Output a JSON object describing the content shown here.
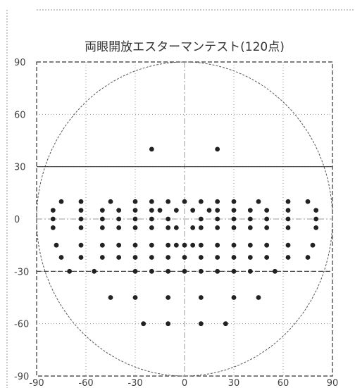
{
  "chart_data": {
    "type": "scatter",
    "title": "両眼開放エスターマンテスト(120点)",
    "xlabel": "",
    "ylabel": "",
    "xlim": [
      -90,
      90
    ],
    "ylim": [
      -90,
      90
    ],
    "xticks": [
      -90,
      -60,
      -30,
      0,
      30,
      60,
      90
    ],
    "yticks": [
      90,
      60,
      30,
      0,
      -30,
      -60,
      -90
    ],
    "grid": true,
    "xtick_labels": [
      "-90",
      "-60",
      "-30",
      "0",
      "30",
      "60",
      "90"
    ],
    "ytick_labels": [
      "90",
      "60",
      "30",
      "0",
      "-30",
      "-60",
      "-90"
    ],
    "reference_circle_radius": 90,
    "reference_lines_y": [
      30,
      -30
    ],
    "marker_color": "#222222",
    "points": [
      [
        -20,
        40
      ],
      [
        20,
        40
      ],
      [
        -75,
        10
      ],
      [
        -63,
        10
      ],
      [
        -45,
        10
      ],
      [
        -30,
        10
      ],
      [
        -20,
        10
      ],
      [
        -10,
        10
      ],
      [
        0,
        10
      ],
      [
        10,
        10
      ],
      [
        20,
        10
      ],
      [
        30,
        10
      ],
      [
        45,
        10
      ],
      [
        63,
        10
      ],
      [
        75,
        10
      ],
      [
        -80,
        5
      ],
      [
        -63,
        5
      ],
      [
        -50,
        5
      ],
      [
        -40,
        5
      ],
      [
        -30,
        5
      ],
      [
        -20,
        5
      ],
      [
        -15,
        5
      ],
      [
        -5,
        5
      ],
      [
        5,
        5
      ],
      [
        15,
        5
      ],
      [
        20,
        5
      ],
      [
        30,
        5
      ],
      [
        40,
        5
      ],
      [
        50,
        5
      ],
      [
        63,
        5
      ],
      [
        80,
        5
      ],
      [
        -80,
        0
      ],
      [
        -63,
        0
      ],
      [
        -50,
        0
      ],
      [
        -40,
        0
      ],
      [
        -30,
        0
      ],
      [
        -20,
        0
      ],
      [
        -10,
        0
      ],
      [
        10,
        0
      ],
      [
        20,
        0
      ],
      [
        30,
        0
      ],
      [
        40,
        0
      ],
      [
        50,
        0
      ],
      [
        63,
        0
      ],
      [
        80,
        0
      ],
      [
        -80,
        -5
      ],
      [
        -63,
        -5
      ],
      [
        -50,
        -5
      ],
      [
        -40,
        -5
      ],
      [
        -30,
        -5
      ],
      [
        -20,
        -5
      ],
      [
        -10,
        -5
      ],
      [
        -5,
        -5
      ],
      [
        5,
        -5
      ],
      [
        10,
        -5
      ],
      [
        20,
        -5
      ],
      [
        30,
        -5
      ],
      [
        40,
        -5
      ],
      [
        50,
        -5
      ],
      [
        63,
        -5
      ],
      [
        80,
        -5
      ],
      [
        -78,
        -15
      ],
      [
        -63,
        -15
      ],
      [
        -50,
        -15
      ],
      [
        -40,
        -15
      ],
      [
        -30,
        -15
      ],
      [
        -20,
        -15
      ],
      [
        -10,
        -15
      ],
      [
        -5,
        -15
      ],
      [
        0,
        -15
      ],
      [
        5,
        -15
      ],
      [
        10,
        -15
      ],
      [
        20,
        -15
      ],
      [
        30,
        -15
      ],
      [
        40,
        -15
      ],
      [
        50,
        -15
      ],
      [
        63,
        -15
      ],
      [
        78,
        -15
      ],
      [
        -75,
        -22
      ],
      [
        -63,
        -22
      ],
      [
        -50,
        -22
      ],
      [
        -40,
        -22
      ],
      [
        -30,
        -22
      ],
      [
        -20,
        -22
      ],
      [
        -10,
        -22
      ],
      [
        0,
        -22
      ],
      [
        10,
        -22
      ],
      [
        20,
        -22
      ],
      [
        30,
        -22
      ],
      [
        40,
        -22
      ],
      [
        50,
        -22
      ],
      [
        63,
        -22
      ],
      [
        75,
        -22
      ],
      [
        -70,
        -30
      ],
      [
        -55,
        -30
      ],
      [
        -30,
        -30
      ],
      [
        -20,
        -30
      ],
      [
        -10,
        -30
      ],
      [
        0,
        -30
      ],
      [
        10,
        -30
      ],
      [
        20,
        -30
      ],
      [
        30,
        -30
      ],
      [
        40,
        -30
      ],
      [
        55,
        -30
      ],
      [
        -45,
        -45
      ],
      [
        -30,
        -45
      ],
      [
        -10,
        -45
      ],
      [
        10,
        -45
      ],
      [
        30,
        -45
      ],
      [
        45,
        -45
      ],
      [
        -25,
        -60
      ],
      [
        -10,
        -60
      ],
      [
        10,
        -60
      ],
      [
        25,
        -60
      ]
    ]
  }
}
